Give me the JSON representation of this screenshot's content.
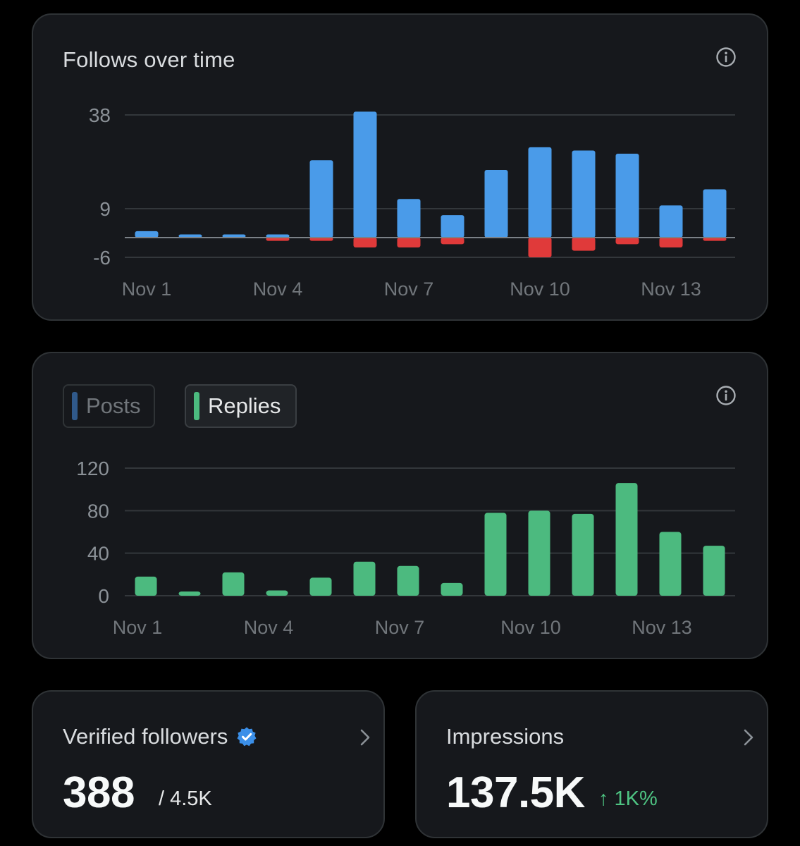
{
  "follows_card": {
    "title": "Follows over time",
    "info_icon": "info-icon"
  },
  "activity_card": {
    "toggles": [
      {
        "label": "Posts",
        "color": "#30598a",
        "selected": false
      },
      {
        "label": "Replies",
        "color": "#4cba7f",
        "selected": true
      }
    ],
    "info_icon": "info-icon"
  },
  "verified_card": {
    "title": "Verified followers",
    "badge_icon": "verified-badge-icon",
    "value": "388",
    "sub": "/ 4.5K"
  },
  "impressions_card": {
    "title": "Impressions",
    "value": "137.5K",
    "change": "↑ 1K%",
    "change_color": "#4ec382"
  },
  "colors": {
    "follows": "#4a9be9",
    "unfollows": "#e03a3a",
    "replies": "#4cba7f"
  },
  "chart_data": [
    {
      "type": "bar",
      "stacked_diverging": true,
      "title": "Follows over time",
      "categories": [
        "Nov 1",
        "Nov 2",
        "Nov 3",
        "Nov 4",
        "Nov 5",
        "Nov 6",
        "Nov 7",
        "Nov 8",
        "Nov 9",
        "Nov 10",
        "Nov 11",
        "Nov 12",
        "Nov 13",
        "Nov 14"
      ],
      "x_tick_labels": [
        "Nov 1",
        "Nov 4",
        "Nov 7",
        "Nov 10",
        "Nov 13"
      ],
      "y_ticks": [
        38,
        9,
        -6
      ],
      "ylim": [
        -6,
        38
      ],
      "grid": true,
      "series": [
        {
          "values": [
            2,
            1,
            1,
            1,
            24,
            39,
            12,
            7,
            21,
            28,
            27,
            26,
            10,
            15
          ],
          "color": "#4a9be9"
        },
        {
          "values": [
            0,
            0,
            0,
            -1,
            -1,
            -3,
            -3,
            -2,
            0,
            -6,
            -4,
            -2,
            -3,
            -1
          ],
          "color": "#e03a3a"
        }
      ]
    },
    {
      "type": "bar",
      "categories": [
        "Nov 1",
        "Nov 2",
        "Nov 3",
        "Nov 4",
        "Nov 5",
        "Nov 6",
        "Nov 7",
        "Nov 8",
        "Nov 9",
        "Nov 10",
        "Nov 11",
        "Nov 12",
        "Nov 13",
        "Nov 14"
      ],
      "x_tick_labels": [
        "Nov 1",
        "Nov 4",
        "Nov 7",
        "Nov 10",
        "Nov 13"
      ],
      "y_ticks": [
        120,
        80,
        40,
        0
      ],
      "ylim": [
        0,
        120
      ],
      "grid": true,
      "series": [
        {
          "name": "Replies",
          "values": [
            18,
            4,
            22,
            5,
            17,
            32,
            28,
            12,
            78,
            80,
            77,
            106,
            60,
            47
          ],
          "color": "#4cba7f"
        }
      ]
    }
  ]
}
